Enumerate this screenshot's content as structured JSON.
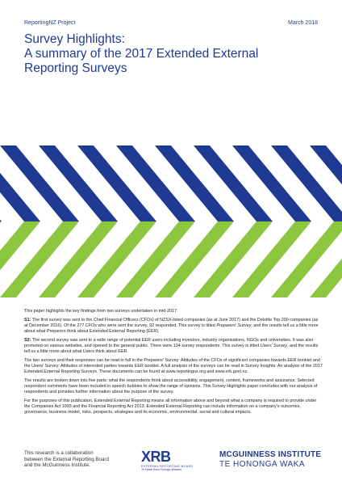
{
  "header": {
    "project": "ReportingNZ Project",
    "date": "March 2018"
  },
  "title": {
    "line1": "Survey Highlights:",
    "line2": "A summary of the 2017 Extended External",
    "line3": "Reporting Surveys"
  },
  "colors": {
    "navy": "#1f3a93",
    "green": "#8cc63f",
    "white": "#ffffff"
  },
  "body": {
    "intro": "This paper highlights the key findings from two surveys undertaken in mid-2017.",
    "s1_label": "S1:",
    "s1_text": "The first survey was sent to the Chief Financial Officers (CFOs) of NZSX-listed companies (as at June 2017) and the Deloitte Top 200 companies (as at December 2016). Of the 277 CFOs who were sent the survey, 92 responded. This survey is titled",
    "s1_title": "Preparers' Survey",
    "s1_end": ", and the results tell us a little more about what Preparers think about Extended External Reporting (EER).",
    "s2_label": "S2:",
    "s2_text": "The second survey was sent to a wide range of potential EER users including investors, industry organisations, NGOs and universities. It was also promoted on various websites, and opened to the general public. There were 104 survey respondents. This survey is titled",
    "s2_title": "Users' Survey",
    "s2_end": ", and the results tell us a little more about what Users think about EER.",
    "p3": "The two surveys and their responses can be read in full in the Preparers' Survey: Attitudes of the CFOs of significant companies towards EER booklet and the Users' Survey: Attitudes of interested parties towards EER booklet. A full analysis of the surveys can be read in Survey Insights: An analysis of the 2017 Extended External Reporting Surveys. These documents can be found at www.reportingnz.org and www.xrb.govt.nz.",
    "p4": "The results are broken down into five parts: what the respondents think about accessibility, engagement, content, frameworks and assurance. Selected respondent comments have been included in speech bubbles to show the range of opinions. This Survey Highlights paper concludes with our analysis of respondents and provides further information about the purpose of the survey.",
    "p5": "For the purposes of this publication, Extended External Reporting means all information above and beyond what a company is required to provide under the Companies Act 1993 and the Financial Reporting Act 2013. Extended External Reporting can include information on a company's outcomes, governance, business model, risks, prospects, strategies and its economic, environmental, social and cultural impacts."
  },
  "footer": {
    "collab_line1": "This research is a collaboration",
    "collab_line2": "between the External Reporting Board",
    "collab_line3": "and the McGuinness Institute.",
    "xrb_mark": "XRB",
    "xrb_name": "EXTERNAL REPORTING BOARD",
    "xrb_maori": "Te Kāwai Ārahi Pūrongo Mōwaho",
    "mci_line1": "MCGUINNESS INSTITUTE",
    "mci_line2": "TE HONONGA WAKA"
  }
}
